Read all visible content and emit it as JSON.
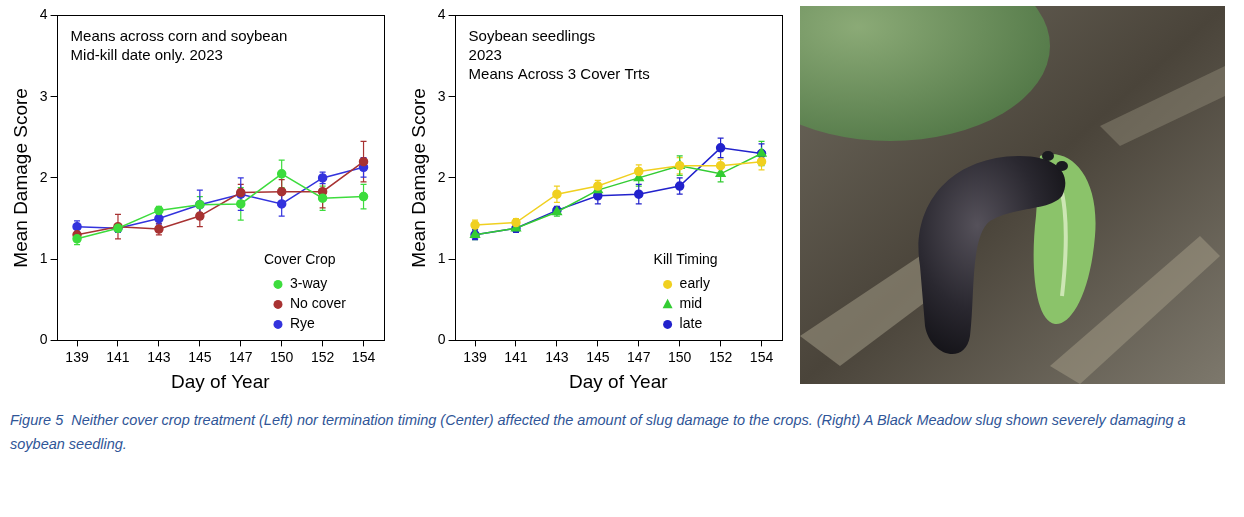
{
  "chart_data": [
    {
      "type": "line",
      "annotations": [
        "Means across corn and soybean",
        "Mid-kill date only. 2023"
      ],
      "legend_title": "Cover Crop",
      "categories": [
        "139",
        "141",
        "143",
        "145",
        "147",
        "150",
        "152",
        "154"
      ],
      "x_label": "Day of Year",
      "y_label": "Mean Damage Score",
      "ylim": [
        0,
        4
      ],
      "yticks": [
        0,
        1,
        2,
        3,
        4
      ],
      "grid": false,
      "legend": "lower right",
      "series": [
        {
          "name": "3-way",
          "color": "#3ddc3d",
          "marker": "circle",
          "values": [
            1.25,
            1.38,
            1.6,
            1.67,
            1.68,
            2.05,
            1.75,
            1.77
          ],
          "errors": [
            0.07,
            0.05,
            0.05,
            0.1,
            0.2,
            0.17,
            0.15,
            0.15
          ]
        },
        {
          "name": "No cover",
          "color": "#a83232",
          "marker": "circle",
          "values": [
            1.3,
            1.4,
            1.37,
            1.53,
            1.82,
            1.83,
            1.83,
            2.2
          ],
          "errors": [
            0.07,
            0.15,
            0.07,
            0.13,
            0.1,
            0.15,
            0.2,
            0.25
          ]
        },
        {
          "name": "Rye",
          "color": "#3333dd",
          "marker": "circle",
          "values": [
            1.4,
            1.38,
            1.5,
            1.67,
            1.8,
            1.68,
            2.0,
            2.13
          ],
          "errors": [
            0.07,
            0.05,
            0.07,
            0.18,
            0.2,
            0.15,
            0.07,
            0.12
          ]
        }
      ]
    },
    {
      "type": "line",
      "annotations": [
        "Soybean seedlings",
        "2023",
        "Means Across 3 Cover Trts"
      ],
      "legend_title": "Kill Timing",
      "categories": [
        "139",
        "141",
        "143",
        "145",
        "147",
        "150",
        "152",
        "154"
      ],
      "x_label": "Day of Year",
      "y_label": "Mean Damage Score",
      "ylim": [
        0,
        4
      ],
      "yticks": [
        0,
        1,
        2,
        3,
        4
      ],
      "grid": false,
      "legend": "lower right",
      "series": [
        {
          "name": "early",
          "color": "#f0d020",
          "marker": "circle",
          "values": [
            1.42,
            1.45,
            1.8,
            1.9,
            2.08,
            2.15,
            2.15,
            2.2
          ],
          "errors": [
            0.06,
            0.05,
            0.1,
            0.07,
            0.08,
            0.1,
            0.08,
            0.1
          ]
        },
        {
          "name": "mid",
          "color": "#33cc33",
          "marker": "triangle",
          "values": [
            1.3,
            1.38,
            1.58,
            1.85,
            2.0,
            2.15,
            2.05,
            2.3
          ],
          "errors": [
            0.06,
            0.05,
            0.05,
            0.08,
            0.1,
            0.12,
            0.1,
            0.15
          ]
        },
        {
          "name": "late",
          "color": "#2222cc",
          "marker": "circle",
          "values": [
            1.3,
            1.38,
            1.6,
            1.78,
            1.8,
            1.9,
            2.37,
            2.3
          ],
          "errors": [
            0.06,
            0.05,
            0.05,
            0.1,
            0.12,
            0.1,
            0.12,
            0.12
          ]
        }
      ]
    }
  ],
  "caption": "Figure 5  Neither cover crop treatment (Left) nor termination timing (Center) affected the amount of slug damage to the crops. (Right) A Black Meadow slug shown severely damaging a soybean seedling."
}
